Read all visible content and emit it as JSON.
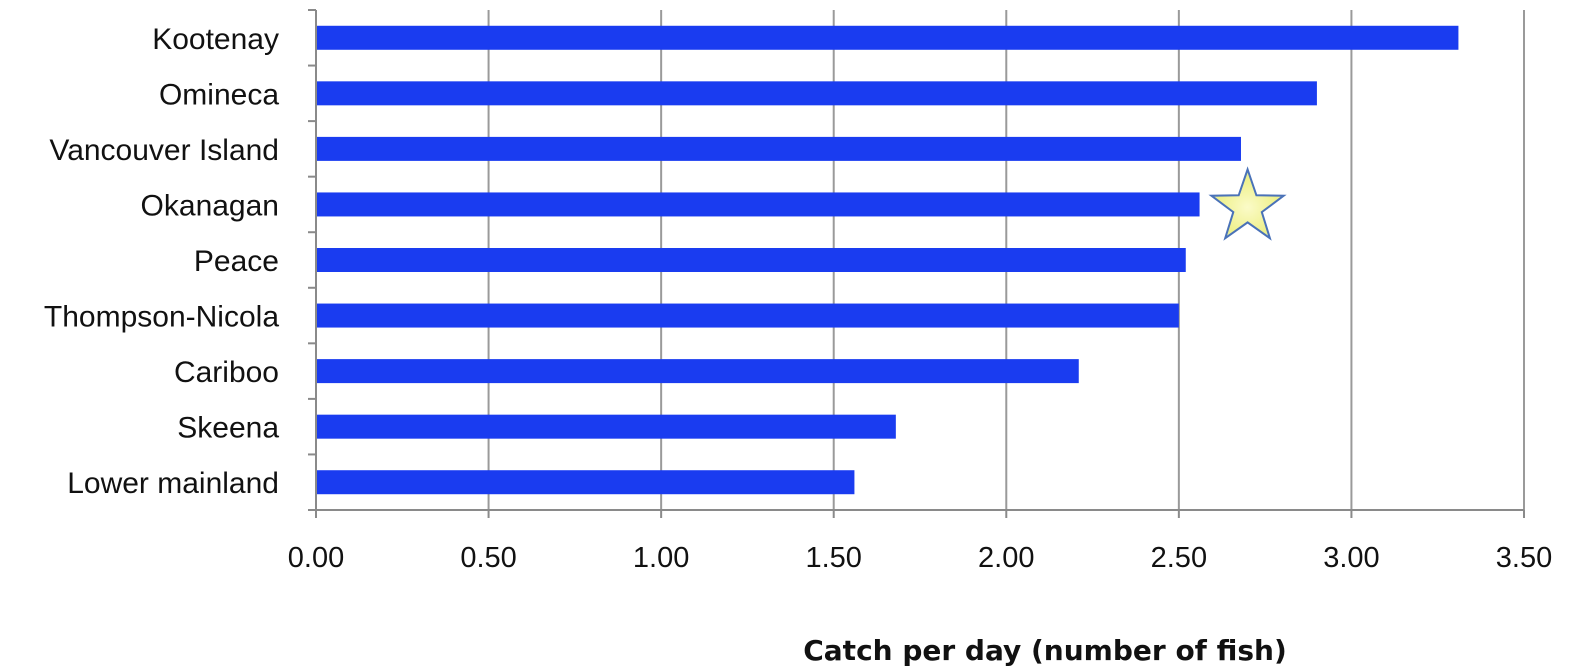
{
  "chart_data": {
    "type": "bar",
    "orientation": "horizontal",
    "categories": [
      "Kootenay",
      "Omineca",
      "Vancouver Island",
      "Okanagan",
      "Peace",
      "Thompson-Nicola",
      "Cariboo",
      "Skeena",
      "Lower mainland"
    ],
    "values": [
      3.31,
      2.9,
      2.68,
      2.56,
      2.52,
      2.5,
      2.21,
      1.68,
      1.56
    ],
    "xlabel": "Catch per day (number of fish)",
    "ylabel": "",
    "title": "",
    "xlim": [
      0,
      3.5
    ],
    "xticks": [
      "0.00",
      "0.50",
      "1.00",
      "1.50",
      "2.00",
      "2.50",
      "3.00",
      "3.50"
    ],
    "grid": "vertical",
    "legend": "none",
    "bar_color": "#1a3cf0",
    "highlight": {
      "category": "Okanagan",
      "marker": "star-icon",
      "fill": "#f4f3a0",
      "stroke": "#4a72b8"
    }
  }
}
